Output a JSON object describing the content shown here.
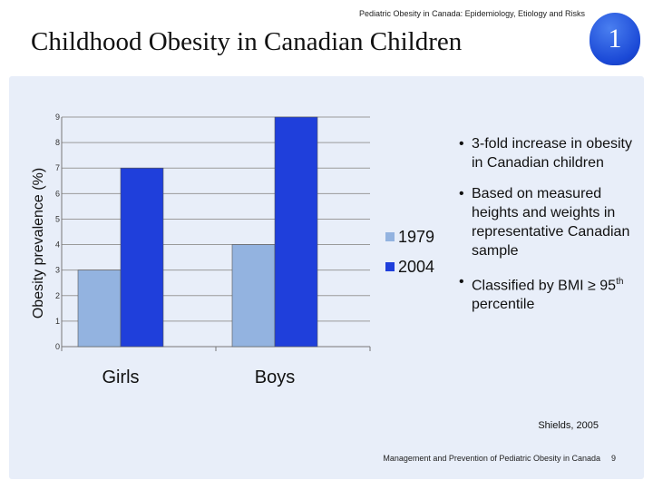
{
  "header": {
    "caption": "Pediatric Obesity in Canada: Epidemiology, Etiology and Risks",
    "title": "Childhood Obesity in Canadian Children",
    "badge": "1"
  },
  "chart_data": {
    "type": "bar",
    "categories": [
      "Girls",
      "Boys"
    ],
    "series": [
      {
        "name": "1979",
        "values": [
          3,
          4
        ],
        "color": "#93b3e0"
      },
      {
        "name": "2004",
        "values": [
          7,
          9
        ],
        "color": "#1f3fdb"
      }
    ],
    "ylabel": "Obesity prevalence (%)",
    "ylim": [
      0,
      9
    ],
    "yticks": [
      "0",
      "1",
      "2",
      "3",
      "4",
      "5",
      "6",
      "7",
      "8",
      "9"
    ],
    "legend": "right"
  },
  "bullets": [
    {
      "text": "3-fold increase in obesity in Canadian children"
    },
    {
      "text": "Based on measured heights and weights in representative Canadian sample"
    },
    {
      "text_before": "Classified by BMI ≥ 95",
      "sup": "th",
      "text_after": " percentile"
    }
  ],
  "source": "Shields, 2005",
  "footer": {
    "text": "Management and Prevention of Pediatric Obesity in Canada",
    "page": "9"
  }
}
